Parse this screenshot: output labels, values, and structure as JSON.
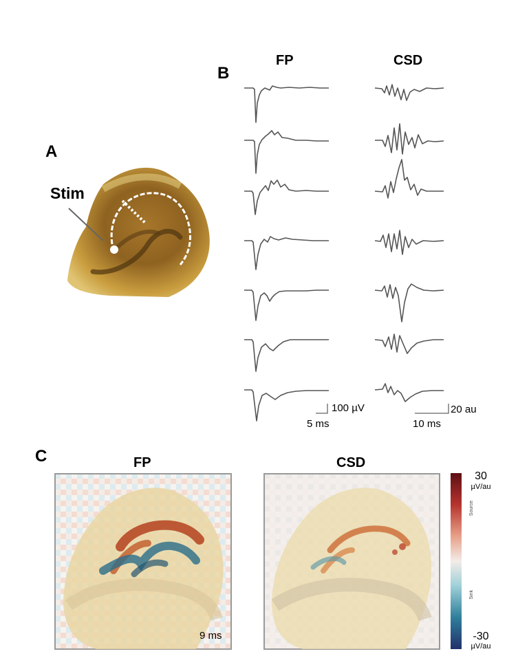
{
  "panel_a": {
    "letter": "A",
    "stim_label": "Stim"
  },
  "panel_b": {
    "letter": "B",
    "fp_title": "FP",
    "csd_title": "CSD",
    "fp_scale": {
      "amplitude": "100 µV",
      "time": "5 ms"
    },
    "csd_scale": {
      "amplitude": "20 au",
      "time": "10 ms"
    },
    "trace_count": 7
  },
  "panel_c": {
    "letter": "C",
    "fp_title": "FP",
    "csd_title": "CSD",
    "time_label": "9 ms",
    "colorbar": {
      "max": "30",
      "max_unit": "µV/au",
      "min": "-30",
      "min_unit": "µV/au",
      "source_text": "Source",
      "sink_text": "Sink",
      "colors": [
        "#5e0f14",
        "#b6342e",
        "#e8a18a",
        "#f3ece8",
        "#9fd0d8",
        "#2f7f9c",
        "#22306b"
      ]
    }
  }
}
